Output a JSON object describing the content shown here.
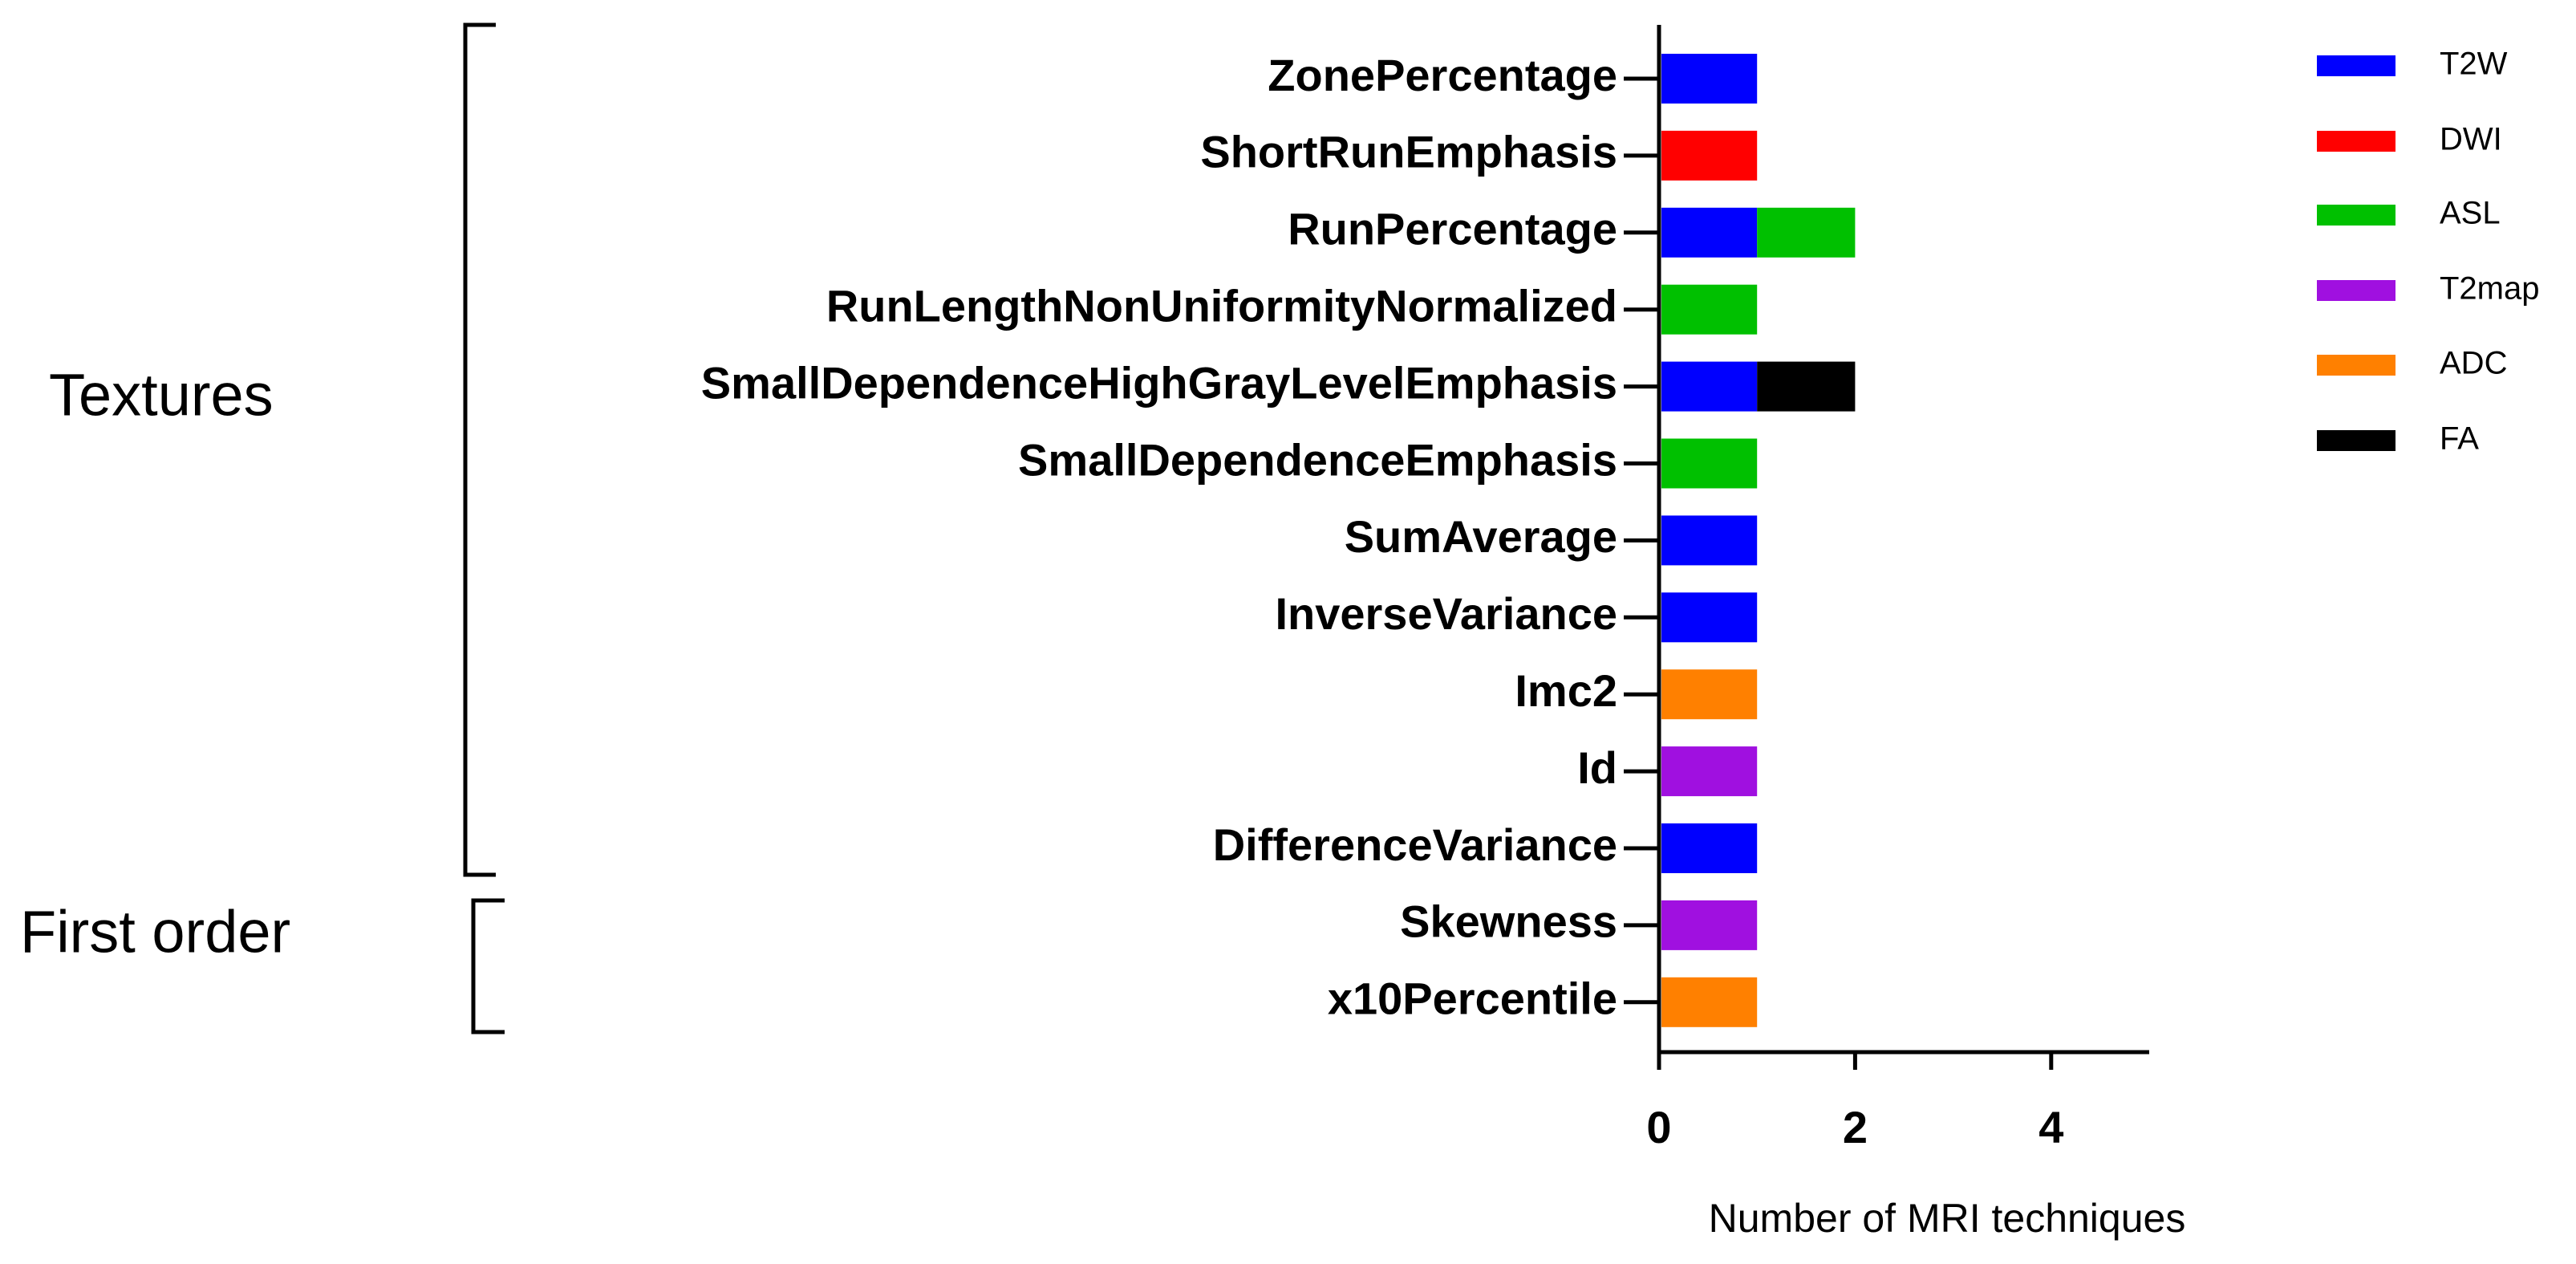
{
  "chart_data": {
    "type": "bar",
    "orientation": "horizontal",
    "stacked": true,
    "x_label": "Number of MRI techniques",
    "categories": [
      "ZonePercentage",
      "ShortRunEmphasis",
      "RunPercentage",
      "RunLengthNonUniformityNormalized",
      "SmallDependenceHighGrayLevelEmphasis",
      "SmallDependenceEmphasis",
      "SumAverage",
      "InverseVariance",
      "Imc2",
      "Id",
      "DifferenceVariance",
      "Skewness",
      "x10Percentile"
    ],
    "series": [
      {
        "name": "T2W",
        "color": "#0000ff",
        "values": [
          1,
          null,
          1,
          null,
          1,
          null,
          1,
          1,
          null,
          null,
          1,
          null,
          null
        ]
      },
      {
        "name": "DWI",
        "color": "#ff0000",
        "values": [
          null,
          1,
          null,
          null,
          null,
          null,
          null,
          null,
          null,
          null,
          null,
          null,
          null
        ]
      },
      {
        "name": "ASL",
        "color": "#00c000",
        "values": [
          null,
          null,
          1,
          1,
          null,
          1,
          null,
          null,
          null,
          null,
          null,
          null,
          null
        ]
      },
      {
        "name": "T2map",
        "color": "#a010e0",
        "values": [
          null,
          null,
          null,
          null,
          null,
          null,
          null,
          null,
          null,
          1,
          null,
          1,
          null
        ]
      },
      {
        "name": "ADC",
        "color": "#ff8000",
        "values": [
          null,
          null,
          null,
          null,
          null,
          null,
          null,
          null,
          1,
          null,
          null,
          null,
          1
        ]
      },
      {
        "name": "FA",
        "color": "#000000",
        "values": [
          null,
          null,
          null,
          null,
          1,
          null,
          null,
          null,
          null,
          null,
          null,
          null,
          null
        ]
      }
    ],
    "xlim": [
      0,
      5
    ],
    "xticks": [
      0,
      2,
      4
    ],
    "groups": [
      {
        "label": "Textures"
      },
      {
        "label": "First order"
      }
    ]
  }
}
